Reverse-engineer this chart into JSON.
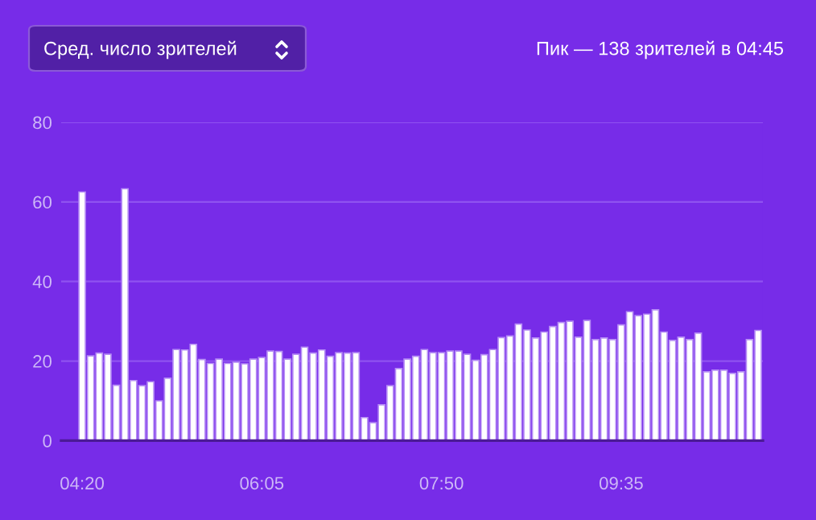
{
  "chart_data": {
    "type": "bar",
    "title": "Сред. число зрителей",
    "annotations": [
      "Пик — 138 зрителей в 04:45"
    ],
    "categories": [
      "04:20",
      null,
      null,
      null,
      null,
      null,
      null,
      null,
      null,
      null,
      null,
      null,
      null,
      null,
      null,
      null,
      null,
      null,
      null,
      null,
      null,
      "06:05",
      null,
      null,
      null,
      null,
      null,
      null,
      null,
      null,
      null,
      null,
      null,
      null,
      null,
      null,
      null,
      null,
      null,
      null,
      null,
      null,
      "07:50",
      null,
      null,
      null,
      null,
      null,
      null,
      null,
      null,
      null,
      null,
      null,
      null,
      null,
      null,
      null,
      null,
      null,
      null,
      null,
      null,
      "09:35",
      null,
      null,
      null,
      null,
      null,
      null,
      null,
      null,
      null,
      null,
      null,
      null,
      null,
      null,
      null,
      null
    ],
    "values": [
      62.5,
      21.3,
      22,
      21.7,
      13.9,
      63.3,
      15.1,
      13.8,
      14.8,
      10,
      15.7,
      22.9,
      22.8,
      24.2,
      20.4,
      19.4,
      20.5,
      19.4,
      19.7,
      19.3,
      20.5,
      20.9,
      22.5,
      22.4,
      20.5,
      21.7,
      23.5,
      22,
      22.8,
      21.2,
      22.1,
      22,
      22.1,
      5.8,
      4.5,
      9,
      13.8,
      18.1,
      20.5,
      21.2,
      22.9,
      22.1,
      22.1,
      22.5,
      22.5,
      21.7,
      20.2,
      21.6,
      22.9,
      25.9,
      26.3,
      29.3,
      27.8,
      25.8,
      27.3,
      28.7,
      29.7,
      30,
      26,
      30.2,
      25.4,
      25.8,
      25.4,
      29.1,
      32.4,
      31.4,
      31.8,
      32.9,
      27.3,
      25.2,
      26,
      25.4,
      27,
      17.3,
      17.7,
      17.7,
      16.9,
      17.3,
      25.4,
      27.7
    ],
    "color": "#ffffff",
    "ylim": [
      0,
      80
    ],
    "yticks": [
      0,
      20,
      40,
      60,
      80
    ],
    "grid": "y"
  }
}
